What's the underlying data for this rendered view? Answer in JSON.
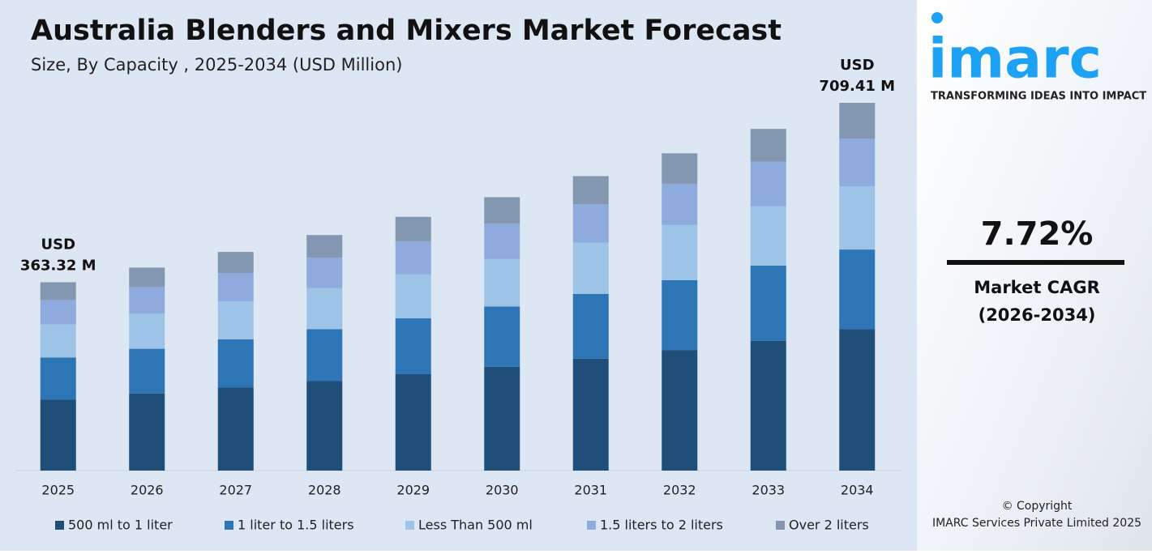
{
  "chart_data": {
    "type": "stacked_bar",
    "title": "Australia Blenders and Mixers Market Forecast",
    "subtitle": "Size, By Capacity , 2025-2034 (USD Million)",
    "categories": [
      "2025",
      "2026",
      "2027",
      "2028",
      "2029",
      "2030",
      "2031",
      "2032",
      "2033",
      "2034"
    ],
    "series": [
      {
        "name": "500 ml to 1 liter",
        "color": "#1f4e79",
        "values": [
          136.7,
          148.8,
          160.3,
          172.7,
          186.0,
          200.4,
          215.9,
          232.6,
          250.5,
          273.2
        ]
      },
      {
        "name": "1 liter to 1.5 liters",
        "color": "#2e75b6",
        "values": [
          81.3,
          86.2,
          92.8,
          100.0,
          107.7,
          116.0,
          125.0,
          134.6,
          145.0,
          153.2
        ]
      },
      {
        "name": "Less Than 500 ml",
        "color": "#9dc3e6",
        "values": [
          64.1,
          68.2,
          73.4,
          79.1,
          85.2,
          91.8,
          98.8,
          106.5,
          114.7,
          121.9
        ]
      },
      {
        "name": "1.5 liters to 2 liters",
        "color": "#8faadc",
        "values": [
          47.0,
          50.9,
          54.8,
          59.1,
          63.6,
          68.6,
          73.9,
          79.6,
          85.7,
          92.3
        ]
      },
      {
        "name": "Over 2 liters",
        "color": "#8497b0",
        "values": [
          34.2,
          37.6,
          40.5,
          43.6,
          47.0,
          50.6,
          54.5,
          58.8,
          63.3,
          68.8
        ]
      }
    ],
    "annotations": [
      [
        "USD",
        "363.32 M"
      ],
      [
        "USD",
        "709.41 M"
      ]
    ]
  },
  "sidebar": {
    "logo": "imarc",
    "tagline": "TRANSFORMING IDEAS INTO IMPACT",
    "cagr": "7.72%",
    "cagr_label": [
      "Market CAGR",
      "(2026-2034)"
    ],
    "copyright": [
      "© Copyright",
      "IMARC Services Private Limited 2025"
    ]
  }
}
